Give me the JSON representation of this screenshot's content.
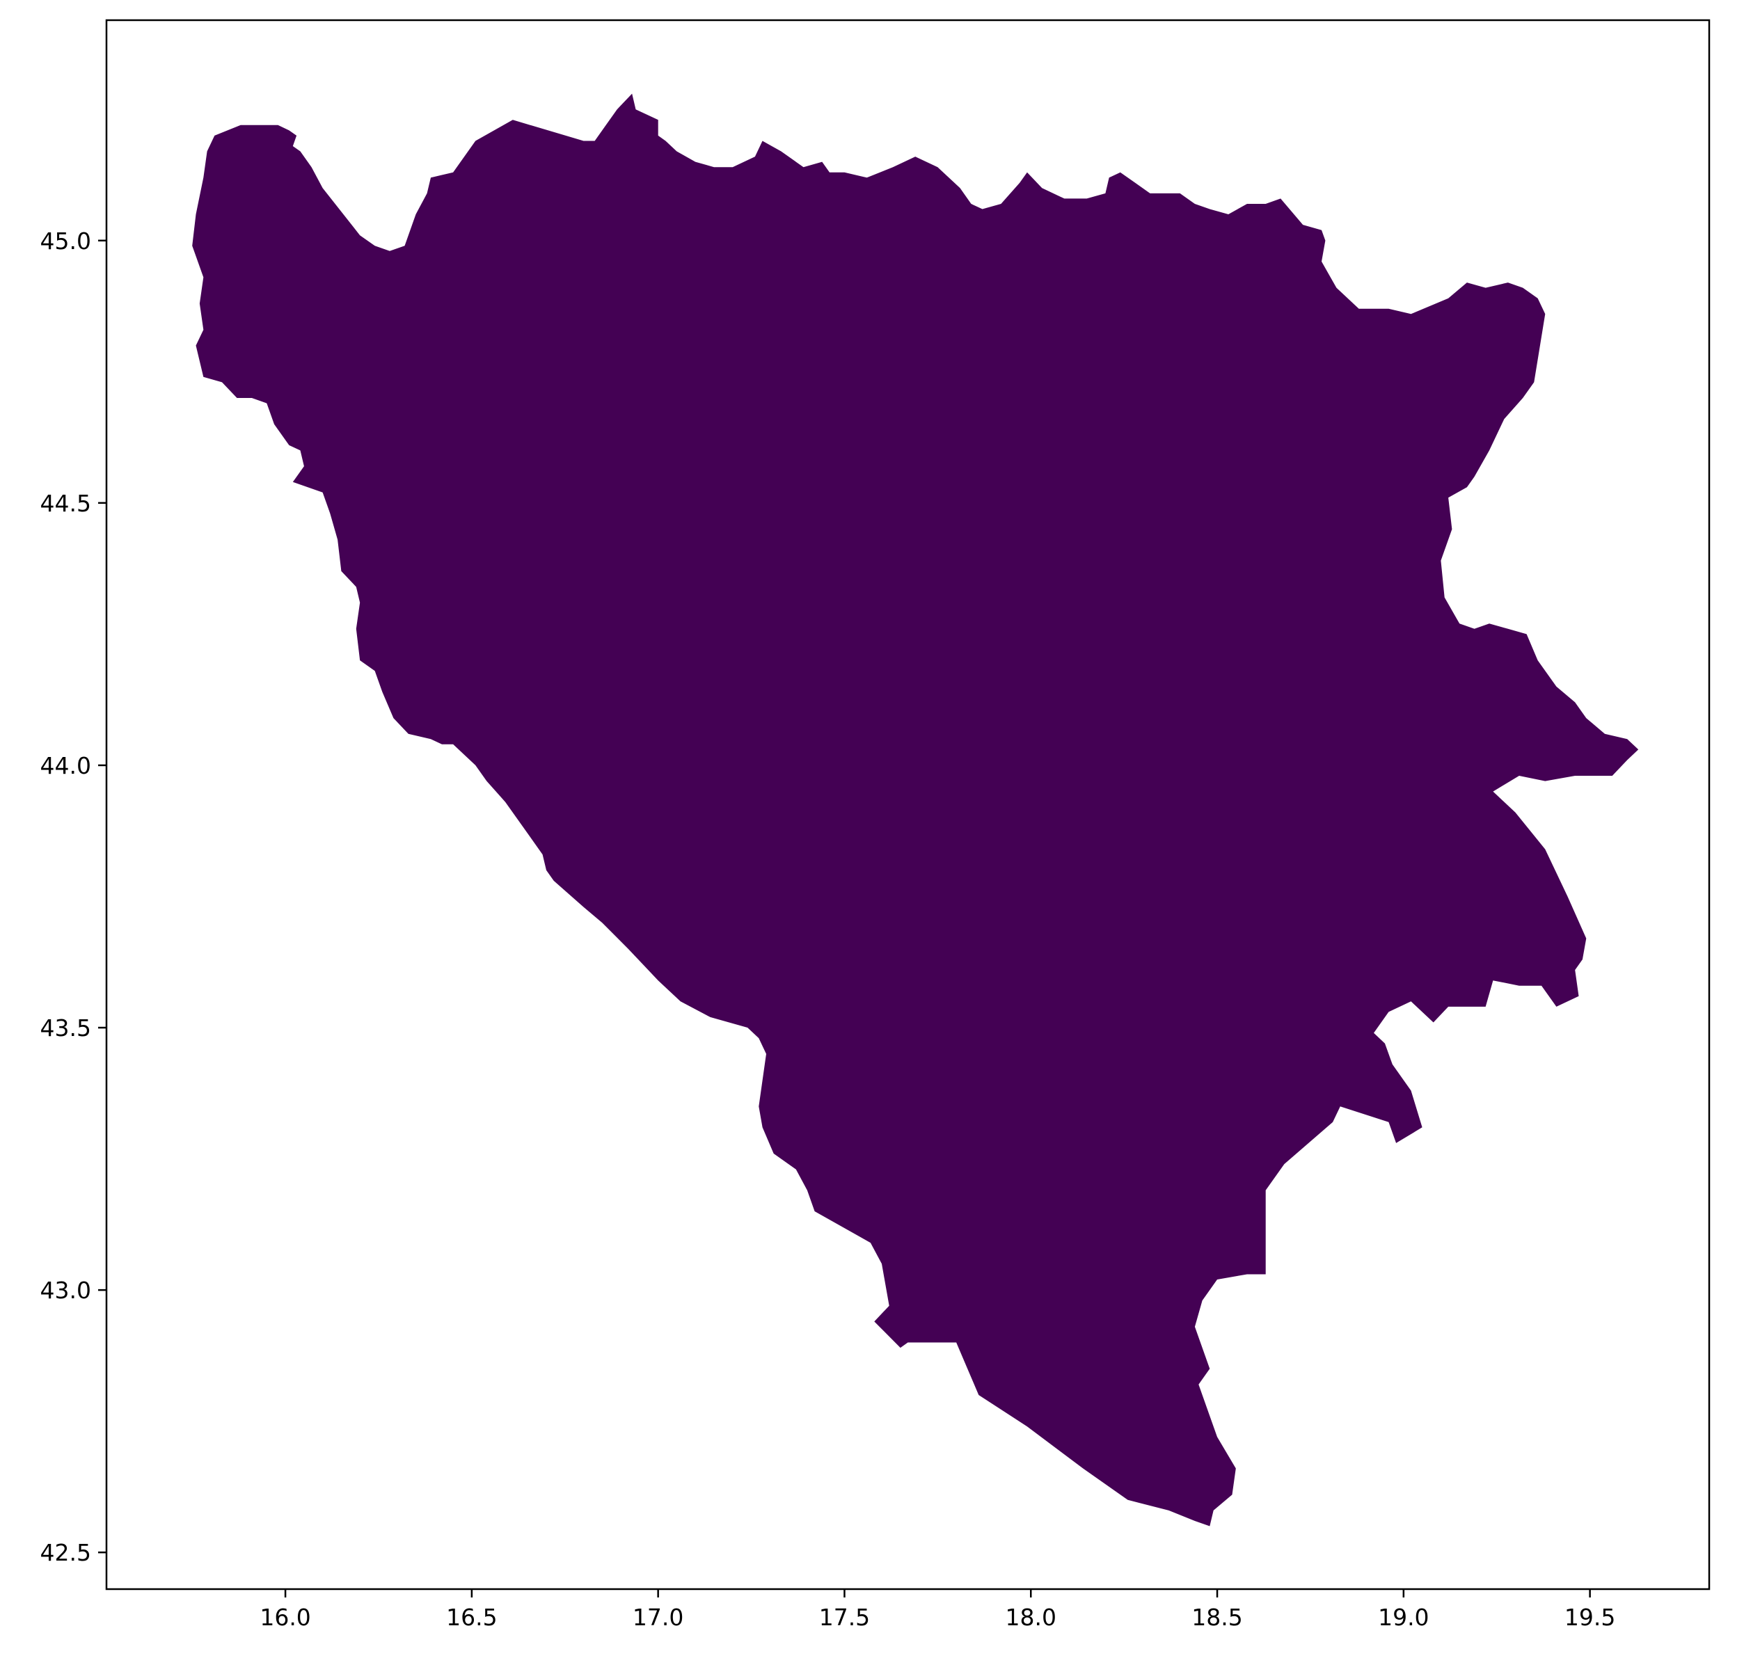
{
  "chart_data": {
    "type": "map",
    "title": "",
    "xlabel": "",
    "ylabel": "",
    "xlim": [
      15.52,
      19.82
    ],
    "ylim": [
      42.43,
      45.42
    ],
    "grid": false,
    "fill_color": "#440154",
    "x_ticks": [
      "16.0",
      "16.5",
      "17.0",
      "17.5",
      "18.0",
      "18.5",
      "19.0",
      "19.5"
    ],
    "y_ticks": [
      "42.5",
      "43.0",
      "43.5",
      "44.0",
      "44.5",
      "45.0"
    ],
    "outline": [
      [
        15.79,
        45.17
      ],
      [
        15.81,
        45.2
      ],
      [
        15.88,
        45.22
      ],
      [
        15.98,
        45.22
      ],
      [
        16.01,
        45.21
      ],
      [
        16.03,
        45.2
      ],
      [
        16.02,
        45.18
      ],
      [
        16.04,
        45.17
      ],
      [
        16.07,
        45.14
      ],
      [
        16.1,
        45.1
      ],
      [
        16.2,
        45.01
      ],
      [
        16.24,
        44.99
      ],
      [
        16.28,
        44.98
      ],
      [
        16.32,
        44.99
      ],
      [
        16.35,
        45.05
      ],
      [
        16.38,
        45.09
      ],
      [
        16.39,
        45.12
      ],
      [
        16.45,
        45.13
      ],
      [
        16.51,
        45.19
      ],
      [
        16.61,
        45.23
      ],
      [
        16.8,
        45.19
      ],
      [
        16.83,
        45.19
      ],
      [
        16.86,
        45.22
      ],
      [
        16.89,
        45.25
      ],
      [
        16.93,
        45.28
      ],
      [
        16.94,
        45.25
      ],
      [
        16.97,
        45.24
      ],
      [
        17.0,
        45.23
      ],
      [
        17.0,
        45.2
      ],
      [
        17.02,
        45.19
      ],
      [
        17.05,
        45.17
      ],
      [
        17.1,
        45.15
      ],
      [
        17.15,
        45.14
      ],
      [
        17.2,
        45.14
      ],
      [
        17.26,
        45.16
      ],
      [
        17.28,
        45.19
      ],
      [
        17.33,
        45.17
      ],
      [
        17.39,
        45.14
      ],
      [
        17.44,
        45.15
      ],
      [
        17.46,
        45.13
      ],
      [
        17.5,
        45.13
      ],
      [
        17.56,
        45.12
      ],
      [
        17.63,
        45.14
      ],
      [
        17.69,
        45.16
      ],
      [
        17.75,
        45.14
      ],
      [
        17.81,
        45.1
      ],
      [
        17.84,
        45.07
      ],
      [
        17.87,
        45.06
      ],
      [
        17.92,
        45.07
      ],
      [
        17.97,
        45.11
      ],
      [
        17.99,
        45.13
      ],
      [
        18.03,
        45.1
      ],
      [
        18.09,
        45.08
      ],
      [
        18.15,
        45.08
      ],
      [
        18.2,
        45.09
      ],
      [
        18.21,
        45.12
      ],
      [
        18.24,
        45.13
      ],
      [
        18.28,
        45.11
      ],
      [
        18.32,
        45.09
      ],
      [
        18.4,
        45.09
      ],
      [
        18.44,
        45.07
      ],
      [
        18.48,
        45.06
      ],
      [
        18.53,
        45.05
      ],
      [
        18.58,
        45.07
      ],
      [
        18.63,
        45.07
      ],
      [
        18.67,
        45.08
      ],
      [
        18.73,
        45.03
      ],
      [
        18.78,
        45.02
      ],
      [
        18.79,
        45.0
      ],
      [
        18.78,
        44.96
      ],
      [
        18.82,
        44.91
      ],
      [
        18.88,
        44.87
      ],
      [
        18.96,
        44.87
      ],
      [
        19.02,
        44.86
      ],
      [
        19.12,
        44.89
      ],
      [
        19.17,
        44.92
      ],
      [
        19.22,
        44.91
      ],
      [
        19.28,
        44.92
      ],
      [
        19.32,
        44.91
      ],
      [
        19.36,
        44.89
      ],
      [
        19.38,
        44.86
      ],
      [
        19.35,
        44.73
      ],
      [
        19.32,
        44.7
      ],
      [
        19.27,
        44.66
      ],
      [
        19.23,
        44.6
      ],
      [
        19.19,
        44.55
      ],
      [
        19.17,
        44.53
      ],
      [
        19.12,
        44.51
      ],
      [
        19.13,
        44.45
      ],
      [
        19.1,
        44.39
      ],
      [
        19.11,
        44.32
      ],
      [
        19.15,
        44.27
      ],
      [
        19.19,
        44.26
      ],
      [
        19.23,
        44.27
      ],
      [
        19.28,
        44.26
      ],
      [
        19.33,
        44.25
      ],
      [
        19.36,
        44.2
      ],
      [
        19.41,
        44.15
      ],
      [
        19.46,
        44.12
      ],
      [
        19.49,
        44.09
      ],
      [
        19.54,
        44.06
      ],
      [
        19.6,
        44.05
      ],
      [
        19.63,
        44.03
      ],
      [
        19.6,
        44.01
      ],
      [
        19.56,
        43.98
      ],
      [
        19.46,
        43.98
      ],
      [
        19.38,
        43.97
      ],
      [
        19.31,
        43.98
      ],
      [
        19.24,
        43.95
      ],
      [
        19.3,
        43.91
      ],
      [
        19.38,
        43.84
      ],
      [
        19.44,
        43.75
      ],
      [
        19.49,
        43.67
      ],
      [
        19.48,
        43.63
      ],
      [
        19.46,
        43.61
      ],
      [
        19.47,
        43.56
      ],
      [
        19.41,
        43.54
      ],
      [
        19.37,
        43.58
      ],
      [
        19.31,
        43.58
      ],
      [
        19.24,
        43.59
      ],
      [
        19.22,
        43.54
      ],
      [
        19.12,
        43.54
      ],
      [
        19.08,
        43.51
      ],
      [
        19.02,
        43.55
      ],
      [
        18.96,
        43.53
      ],
      [
        18.92,
        43.49
      ],
      [
        18.95,
        43.47
      ],
      [
        18.97,
        43.43
      ],
      [
        19.02,
        43.38
      ],
      [
        19.05,
        43.31
      ],
      [
        18.98,
        43.28
      ],
      [
        18.96,
        43.32
      ],
      [
        18.83,
        43.35
      ],
      [
        18.81,
        43.32
      ],
      [
        18.68,
        43.24
      ],
      [
        18.63,
        43.19
      ],
      [
        18.63,
        43.03
      ],
      [
        18.58,
        43.03
      ],
      [
        18.5,
        43.02
      ],
      [
        18.46,
        42.98
      ],
      [
        18.44,
        42.93
      ],
      [
        18.48,
        42.85
      ],
      [
        18.45,
        42.82
      ],
      [
        18.5,
        42.72
      ],
      [
        18.55,
        42.66
      ],
      [
        18.54,
        42.61
      ],
      [
        18.49,
        42.58
      ],
      [
        18.48,
        42.55
      ],
      [
        18.44,
        42.56
      ],
      [
        18.37,
        42.58
      ],
      [
        18.26,
        42.6
      ],
      [
        18.14,
        42.66
      ],
      [
        17.99,
        42.74
      ],
      [
        17.86,
        42.8
      ],
      [
        17.83,
        42.85
      ],
      [
        17.8,
        42.9
      ],
      [
        17.67,
        42.9
      ],
      [
        17.65,
        42.89
      ],
      [
        17.58,
        42.94
      ],
      [
        17.62,
        42.97
      ],
      [
        17.6,
        43.05
      ],
      [
        17.57,
        43.09
      ],
      [
        17.42,
        43.15
      ],
      [
        17.4,
        43.19
      ],
      [
        17.37,
        43.23
      ],
      [
        17.31,
        43.26
      ],
      [
        17.28,
        43.31
      ],
      [
        17.27,
        43.35
      ],
      [
        17.29,
        43.45
      ],
      [
        17.27,
        43.48
      ],
      [
        17.24,
        43.5
      ],
      [
        17.14,
        43.52
      ],
      [
        17.06,
        43.55
      ],
      [
        17.0,
        43.59
      ],
      [
        16.92,
        43.65
      ],
      [
        16.85,
        43.7
      ],
      [
        16.8,
        43.73
      ],
      [
        16.72,
        43.78
      ],
      [
        16.7,
        43.8
      ],
      [
        16.69,
        43.83
      ],
      [
        16.66,
        43.86
      ],
      [
        16.59,
        43.93
      ],
      [
        16.54,
        43.97
      ],
      [
        16.51,
        44.0
      ],
      [
        16.48,
        44.02
      ],
      [
        16.45,
        44.04
      ],
      [
        16.42,
        44.04
      ],
      [
        16.39,
        44.05
      ],
      [
        16.33,
        44.06
      ],
      [
        16.29,
        44.09
      ],
      [
        16.26,
        44.14
      ],
      [
        16.24,
        44.18
      ],
      [
        16.2,
        44.2
      ],
      [
        16.19,
        44.26
      ],
      [
        16.2,
        44.31
      ],
      [
        16.19,
        44.34
      ],
      [
        16.15,
        44.37
      ],
      [
        16.14,
        44.43
      ],
      [
        16.12,
        44.48
      ],
      [
        16.1,
        44.52
      ],
      [
        16.06,
        44.53
      ],
      [
        16.02,
        44.54
      ],
      [
        16.05,
        44.57
      ],
      [
        16.04,
        44.6
      ],
      [
        16.01,
        44.61
      ],
      [
        15.97,
        44.65
      ],
      [
        15.95,
        44.69
      ],
      [
        15.91,
        44.7
      ],
      [
        15.87,
        44.7
      ],
      [
        15.83,
        44.73
      ],
      [
        15.78,
        44.74
      ],
      [
        15.76,
        44.8
      ],
      [
        15.78,
        44.83
      ],
      [
        15.77,
        44.88
      ],
      [
        15.78,
        44.93
      ],
      [
        15.75,
        44.99
      ],
      [
        15.76,
        45.05
      ],
      [
        15.78,
        45.12
      ],
      [
        15.79,
        45.17
      ]
    ]
  }
}
